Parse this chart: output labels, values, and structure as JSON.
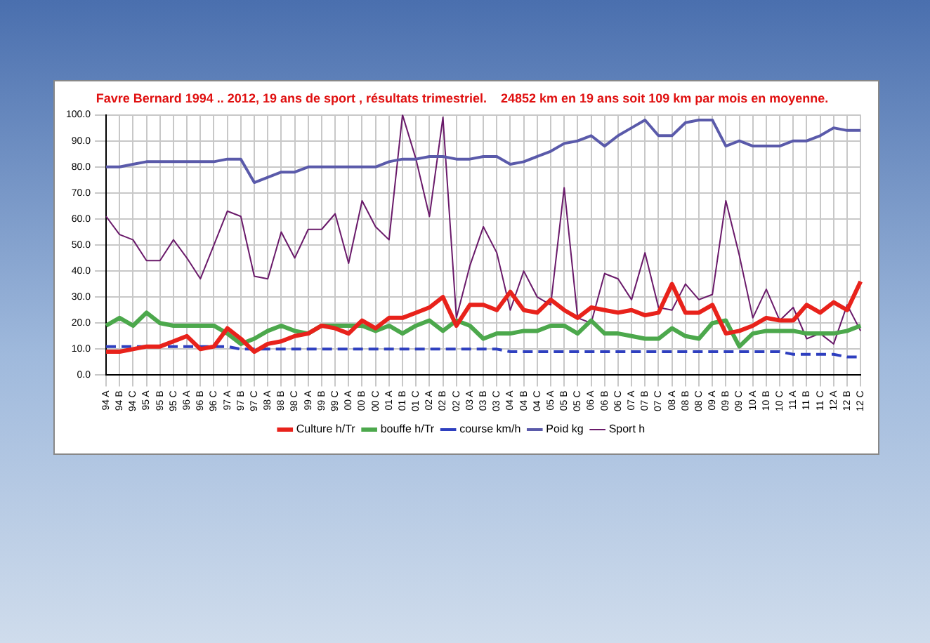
{
  "chart_data": {
    "type": "line",
    "title": "Favre Bernard 1994 .. 2012, 19 ans de sport , résultats trimestriel.    24852 km en 19 ans soit 109 km par mois en moyenne.",
    "categories": [
      "94 A",
      "94 B",
      "94 C",
      "95 A",
      "95 B",
      "95 C",
      "96 A",
      "96 B",
      "96 C",
      "97 A",
      "97 B",
      "97 C",
      "98 A",
      "98 B",
      "98 C",
      "99 A",
      "99 B",
      "99 C",
      "00 A",
      "00 B",
      "00 C",
      "01 A",
      "01 B",
      "01 C",
      "02 A",
      "02 B",
      "02 C",
      "03 A",
      "03 B",
      "03 C",
      "04 A",
      "04 B",
      "04 C",
      "05 A",
      "05 B",
      "05 C",
      "06 A",
      "06 B",
      "06 C",
      "07 A",
      "07 B",
      "07 C",
      "08 A",
      "08 B",
      "08 C",
      "09 A",
      "09 B",
      "09 C",
      "10 A",
      "10 B",
      "10 C",
      "11 A",
      "11 B",
      "11 C",
      "12 A",
      "12 B",
      "12 C"
    ],
    "series": [
      {
        "name": "Culture h/Tr",
        "color": "#e8221b",
        "values": [
          9,
          9,
          10,
          11,
          11,
          13,
          15,
          10,
          11,
          18,
          14,
          9,
          12,
          13,
          15,
          16,
          19,
          18,
          16,
          21,
          18,
          22,
          22,
          24,
          26,
          30,
          19,
          27,
          27,
          25,
          32,
          25,
          24,
          29,
          25,
          22,
          26,
          25,
          24,
          25,
          23,
          24,
          35,
          24,
          24,
          27,
          16,
          17,
          19,
          22,
          21,
          21,
          27,
          24,
          28,
          25,
          36
        ]
      },
      {
        "name": "bouffe h/Tr",
        "color": "#4ca84c",
        "values": [
          19,
          22,
          19,
          24,
          20,
          19,
          19,
          19,
          19,
          16,
          12,
          14,
          17,
          19,
          17,
          16,
          19,
          19,
          19,
          19,
          17,
          19,
          16,
          19,
          21,
          17,
          21,
          19,
          14,
          16,
          16,
          17,
          17,
          19,
          19,
          16,
          21,
          16,
          16,
          15,
          14,
          14,
          18,
          15,
          14,
          20,
          21,
          11,
          16,
          17,
          17,
          17,
          16,
          16,
          16,
          17,
          19
        ]
      },
      {
        "name": "course km/h",
        "color": "#2e3fbf",
        "line_style": "dashed",
        "values": [
          11,
          11,
          11,
          11,
          11,
          11,
          11,
          11,
          11,
          11,
          10,
          10,
          10,
          10,
          10,
          10,
          10,
          10,
          10,
          10,
          10,
          10,
          10,
          10,
          10,
          10,
          10,
          10,
          10,
          10,
          9,
          9,
          9,
          9,
          9,
          9,
          9,
          9,
          9,
          9,
          9,
          9,
          9,
          9,
          9,
          9,
          9,
          9,
          9,
          9,
          9,
          8,
          8,
          8,
          8,
          7,
          7
        ]
      },
      {
        "name": "Poid kg",
        "color": "#5a5aaa",
        "values": [
          80,
          80,
          81,
          82,
          82,
          82,
          82,
          82,
          82,
          83,
          83,
          74,
          76,
          78,
          78,
          80,
          80,
          80,
          80,
          80,
          80,
          82,
          83,
          83,
          84,
          84,
          83,
          83,
          84,
          84,
          81,
          82,
          84,
          86,
          89,
          90,
          92,
          88,
          92,
          95,
          98,
          92,
          92,
          97,
          98,
          98,
          88,
          90,
          88,
          88,
          88,
          90,
          90,
          92,
          95,
          94,
          94
        ]
      },
      {
        "name": "Sport h",
        "color": "#6a1a6a",
        "values": [
          61,
          54,
          52,
          44,
          44,
          52,
          45,
          37,
          50,
          63,
          61,
          38,
          37,
          55,
          45,
          56,
          56,
          62,
          43,
          67,
          57,
          52,
          100,
          83,
          61,
          99,
          22,
          42,
          57,
          47,
          25,
          40,
          30,
          27,
          72,
          22,
          20,
          39,
          37,
          29,
          47,
          26,
          25,
          35,
          29,
          31,
          67,
          46,
          22,
          33,
          21,
          26,
          14,
          16,
          12,
          27,
          17
        ]
      }
    ],
    "ylim": [
      0,
      100
    ],
    "yticks": [
      {
        "value": 0,
        "label": "0.0"
      },
      {
        "value": 10,
        "label": "10.0"
      },
      {
        "value": 20,
        "label": "20.0"
      },
      {
        "value": 30,
        "label": "30.0"
      },
      {
        "value": 40,
        "label": "40.0"
      },
      {
        "value": 50,
        "label": "50.0"
      },
      {
        "value": 60,
        "label": "60.0"
      },
      {
        "value": 70,
        "label": "70.0"
      },
      {
        "value": 80,
        "label": "80.0"
      },
      {
        "value": 90,
        "label": "90.0"
      },
      {
        "value": 100,
        "label": "100.0"
      }
    ],
    "grid": true,
    "legend": "bottom",
    "marker": "none"
  }
}
